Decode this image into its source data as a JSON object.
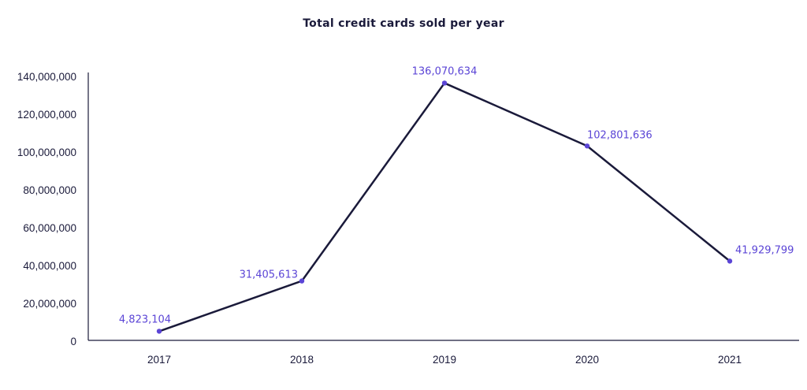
{
  "chart_data": {
    "type": "line",
    "title": "Total credit cards sold per year",
    "xlabel": "",
    "ylabel": "",
    "categories": [
      "2017",
      "2018",
      "2019",
      "2020",
      "2021"
    ],
    "series": [
      {
        "values": [
          4823104,
          31405613,
          136070634,
          102801636,
          41929799
        ]
      }
    ],
    "data_labels": [
      "4,823,104",
      "31,405,613",
      "136,070,634",
      "102,801,636",
      "41,929,799"
    ],
    "ylim": [
      0,
      140000000
    ],
    "y_ticks": [
      0,
      20000000,
      40000000,
      60000000,
      80000000,
      100000000,
      120000000,
      140000000
    ],
    "y_tick_labels": [
      "0",
      "20,000,000",
      "40,000,000",
      "60,000,000",
      "80,000,000",
      "100,000,000",
      "120,000,000",
      "140,000,000"
    ],
    "grid": false,
    "legend": "none",
    "colors": {
      "line": "#1a1a3a",
      "marker": "#5b45d6",
      "data_label": "#5b45d6",
      "axis": "#1a1a3a"
    }
  }
}
